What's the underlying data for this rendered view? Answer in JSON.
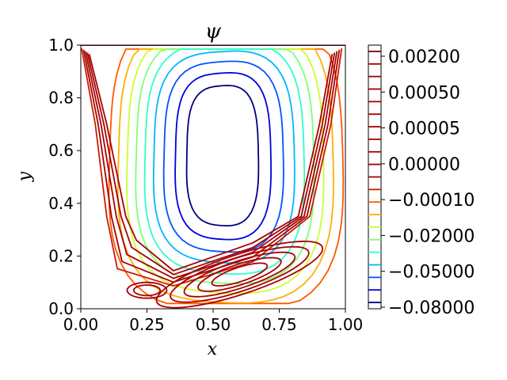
{
  "chart_data": {
    "type": "contour",
    "title": "ψ",
    "xlabel": "x",
    "ylabel": "y",
    "xlim": [
      0.0,
      1.0
    ],
    "ylim": [
      0.0,
      1.0
    ],
    "x_ticks": [
      "0.00",
      "0.25",
      "0.50",
      "0.75",
      "1.00"
    ],
    "y_ticks": [
      "0.0",
      "0.2",
      "0.4",
      "0.6",
      "0.8",
      "1.0"
    ],
    "colorbar": {
      "colormap": "jet",
      "labels": [
        "0.00200",
        "0.00050",
        "0.00005",
        "0.00000",
        "−0.00010",
        "−0.02000",
        "−0.05000",
        "−0.08000"
      ],
      "levels": [
        {
          "value": -0.08,
          "color": "#00007f"
        },
        {
          "value": -0.07,
          "color": "#0000e1"
        },
        {
          "value": -0.06,
          "color": "#0055ff"
        },
        {
          "value": -0.05,
          "color": "#00b8ff"
        },
        {
          "value": -0.04,
          "color": "#2cffca"
        },
        {
          "value": -0.03,
          "color": "#7dff7a"
        },
        {
          "value": -0.02,
          "color": "#caff2c"
        },
        {
          "value": -0.01,
          "color": "#ffb000"
        },
        {
          "value": -0.0001,
          "color": "#ff5900"
        },
        {
          "value": -5e-05,
          "color": "#cc1a00"
        },
        {
          "value": 0.0,
          "color": "#a80000"
        },
        {
          "value": 1e-05,
          "color": "#a80000"
        },
        {
          "value": 5e-05,
          "color": "#a80000"
        },
        {
          "value": 0.0001,
          "color": "#a80000"
        },
        {
          "value": 0.0002,
          "color": "#a80000"
        },
        {
          "value": 0.0005,
          "color": "#a80000"
        },
        {
          "value": 0.001,
          "color": "#a80000"
        },
        {
          "value": 0.0015,
          "color": "#a80000"
        },
        {
          "value": 0.002,
          "color": "#a80000"
        },
        {
          "value": 0.0025,
          "color": "#a80000"
        },
        {
          "value": 0.003,
          "color": "#7f0000"
        }
      ]
    },
    "main_vortex": {
      "center": [
        0.53,
        0.62
      ],
      "radii": [
        {
          "level": -0.08,
          "rx": 0.135,
          "ry": 0.235,
          "color": "#00007f"
        },
        {
          "level": -0.07,
          "rx": 0.18,
          "ry": 0.285,
          "color": "#0000e1"
        },
        {
          "level": -0.06,
          "rx": 0.225,
          "ry": 0.33,
          "color": "#0055ff"
        },
        {
          "level": -0.05,
          "rx": 0.265,
          "ry": 0.37,
          "color": "#00b8ff"
        },
        {
          "level": -0.04,
          "rx": 0.3,
          "ry": 0.41,
          "color": "#2cffca"
        },
        {
          "level": -0.03,
          "rx": 0.335,
          "ry": 0.445,
          "color": "#7dff7a"
        },
        {
          "level": -0.02,
          "rx": 0.37,
          "ry": 0.48,
          "color": "#caff2c"
        },
        {
          "level": -0.01,
          "rx": 0.405,
          "ry": 0.515,
          "color": "#ffb000"
        },
        {
          "level": -0.0001,
          "rx": 0.44,
          "ry": 0.55,
          "color": "#ff5900"
        }
      ]
    },
    "bottom_vortex": {
      "center": [
        0.6,
        0.13
      ],
      "levels": [
        1e-05,
        5e-05,
        0.0001,
        0.0002,
        0.0005
      ],
      "color": "#a80000"
    }
  }
}
